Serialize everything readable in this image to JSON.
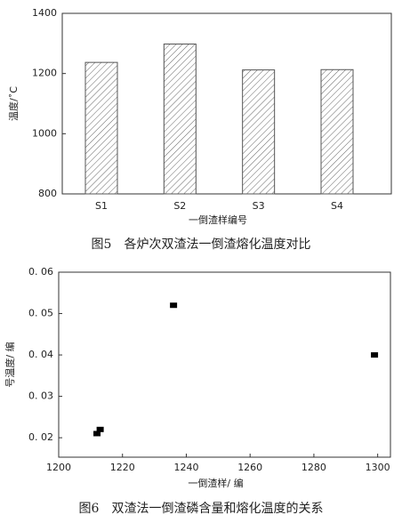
{
  "chart_data": [
    {
      "type": "bar",
      "title": "图5　各炉次双渣法一倒渣熔化温度对比",
      "xlabel": "一倒渣样编号",
      "ylabel": "温度/˚C",
      "categories": [
        "S1",
        "S2",
        "S3",
        "S4"
      ],
      "values": [
        1237,
        1298,
        1212,
        1213
      ],
      "color": "#555555",
      "ylim": [
        800,
        1400
      ],
      "yticks": [
        800,
        1000,
        1200,
        1400
      ]
    },
    {
      "type": "scatter",
      "title": "图6　双渣法一倒渣磷含量和熔化温度的关系",
      "xlabel": "一倒渣样/ 编",
      "ylabel": "号温度/ 编",
      "x": [
        1212,
        1213,
        1236,
        1299
      ],
      "values": [
        0.021,
        0.022,
        0.052,
        0.04
      ],
      "color": "#000000",
      "xlim": [
        1200,
        1304
      ],
      "xticks": [
        1200,
        1220,
        1240,
        1260,
        1280,
        1300
      ],
      "ylim": [
        0.0153,
        0.06
      ],
      "yticks": [
        {
          "value": 0.02,
          "label": "0. 02"
        },
        {
          "value": 0.03,
          "label": "0. 03"
        },
        {
          "value": 0.04,
          "label": "0. 04"
        },
        {
          "value": 0.05,
          "label": "0. 05"
        },
        {
          "value": 0.06,
          "label": "0. 06"
        }
      ]
    }
  ]
}
